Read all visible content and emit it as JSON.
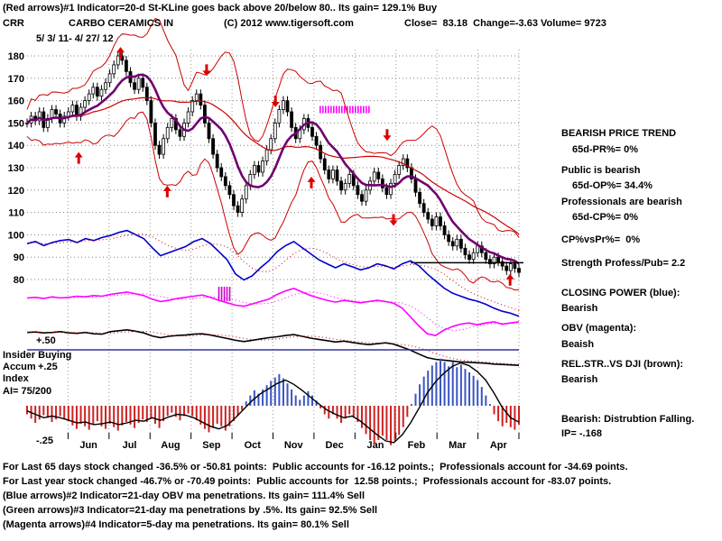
{
  "header": {
    "indicator1": "(Red arrows)#1 Indicator=20-d St-KLine goes back above 20/below 80.. Its gain= 129.1% Buy",
    "symbol": "CRR",
    "company": "CARBO CERAMICS IN",
    "copyright": "(C) 2012 www.tigersoft.com",
    "quote": "Close=  83.18  Change=-3.63 Volume= 9723",
    "date_range": "5/ 3/ 11- 4/ 27/ 12"
  },
  "left_labels": {
    "scale_plus50": "+.50",
    "insider": "Insider Buying",
    "accum": "Accum",
    "scale_plus25": "+.25",
    "index": "Index",
    "ai": "AI= 75/200",
    "scale_minus25": "-.25"
  },
  "side_panel": {
    "lines": [
      "BEARISH PRICE TREND",
      "65d-PR%= 0%",
      "Public is bearish",
      "65d-OP%= 34.4%",
      "Professionals are bearish",
      "65d-CP%= 0%",
      "CP%vsPr%=  0%",
      "Strength Profess/Pub= 2.2",
      "CLOSING POWER (blue):",
      "Bearish",
      "OBV (magenta):",
      "Beaish",
      "REL.STR..VS DJI (brown):",
      "Bearish",
      "Bearish: Distrubtion Falling.",
      "IP= -.168"
    ]
  },
  "footer": {
    "lines": [
      "For Last 65 days stock changed -36.5% or -50.81 points:  Public accounts for -16.12 points.;  Professionals account for -34.69 points.",
      "For Last year stock changed -46.7% or -70.49 points:  Public accounts for  12.58 points.;  Professionals account for -83.07 points.",
      "(Blue arrows)#2 Indicator=21-day OBV ma penetrations. Its gain= 111.4% Sell",
      "(Green arrows)#3 Indicator=21-day ma penetrations by .5%. Its gain= 92.5% Sell",
      "(Magenta arrows)#4 Indicator=5-day ma penetrations. Its gain= 80.1% Sell"
    ]
  },
  "chart_data": {
    "type": "candlestick",
    "title": "CARBO CERAMICS IN (CRR)",
    "date_range": "5/ 3/ 11- 4/ 27/ 12",
    "close": 83.18,
    "change": -3.63,
    "volume": 9723,
    "y_ticks": [
      180,
      170,
      160,
      150,
      140,
      130,
      120,
      110,
      100,
      90,
      80
    ],
    "ylim": [
      75,
      185
    ],
    "months": [
      "Jun",
      "Jul",
      "Aug",
      "Sep",
      "Oct",
      "Nov",
      "Dec",
      "Jan",
      "Feb",
      "Mar",
      "Apr"
    ],
    "close_series": [
      150,
      153,
      151,
      155,
      148,
      152,
      156,
      154,
      150,
      153,
      155,
      158,
      153,
      157,
      160,
      163,
      166,
      162,
      165,
      168,
      172,
      176,
      180,
      178,
      173,
      168,
      165,
      170,
      166,
      160,
      150,
      140,
      136,
      143,
      148,
      152,
      147,
      144,
      150,
      155,
      160,
      163,
      158,
      150,
      143,
      136,
      130,
      126,
      122,
      118,
      113,
      110,
      116,
      122,
      127,
      131,
      128,
      133,
      138,
      143,
      150,
      156,
      160,
      155,
      148,
      143,
      147,
      152,
      148,
      144,
      140,
      134,
      129,
      125,
      129,
      124,
      120,
      123,
      127,
      122,
      118,
      115,
      120,
      124,
      128,
      125,
      121,
      118,
      123,
      127,
      131,
      134,
      130,
      125,
      119,
      114,
      110,
      107,
      104,
      108,
      104,
      100,
      97,
      95,
      98,
      94,
      91,
      89,
      92,
      95,
      92,
      89,
      87,
      90,
      88,
      86,
      84,
      87,
      85,
      83.18
    ],
    "closing_power": [
      0.82,
      0.84,
      0.8,
      0.83,
      0.85,
      0.86,
      0.83,
      0.87,
      0.85,
      0.88,
      0.9,
      0.93,
      0.95,
      0.91,
      0.87,
      0.78,
      0.7,
      0.73,
      0.76,
      0.79,
      0.84,
      0.87,
      0.82,
      0.74,
      0.66,
      0.52,
      0.46,
      0.5,
      0.58,
      0.65,
      0.74,
      0.8,
      0.84,
      0.78,
      0.72,
      0.66,
      0.62,
      0.58,
      0.62,
      0.59,
      0.56,
      0.58,
      0.62,
      0.6,
      0.57,
      0.62,
      0.65,
      0.6,
      0.52,
      0.45,
      0.38,
      0.33,
      0.3,
      0.27,
      0.25,
      0.22,
      0.18,
      0.15,
      0.13,
      0.1
    ],
    "obv": [
      0.72,
      0.73,
      0.71,
      0.74,
      0.72,
      0.73,
      0.75,
      0.74,
      0.76,
      0.75,
      0.78,
      0.8,
      0.82,
      0.79,
      0.76,
      0.7,
      0.66,
      0.68,
      0.71,
      0.73,
      0.75,
      0.77,
      0.73,
      0.68,
      0.64,
      0.6,
      0.58,
      0.62,
      0.66,
      0.7,
      0.78,
      0.84,
      0.88,
      0.82,
      0.76,
      0.72,
      0.68,
      0.65,
      0.68,
      0.66,
      0.64,
      0.66,
      0.68,
      0.66,
      0.63,
      0.55,
      0.4,
      0.25,
      0.12,
      0.09,
      0.18,
      0.24,
      0.28,
      0.3,
      0.27,
      0.3,
      0.32,
      0.28,
      0.3,
      0.32
    ],
    "rel_str": [
      0.86,
      0.87,
      0.85,
      0.86,
      0.88,
      0.85,
      0.84,
      0.86,
      0.83,
      0.82,
      0.88,
      0.9,
      0.92,
      0.89,
      0.85,
      0.78,
      0.74,
      0.77,
      0.79,
      0.8,
      0.82,
      0.83,
      0.8,
      0.76,
      0.72,
      0.68,
      0.65,
      0.68,
      0.71,
      0.74,
      0.76,
      0.79,
      0.81,
      0.77,
      0.73,
      0.7,
      0.67,
      0.64,
      0.66,
      0.63,
      0.6,
      0.58,
      0.6,
      0.62,
      0.59,
      0.52,
      0.45,
      0.36,
      0.28,
      0.24,
      0.22,
      0.2,
      0.18,
      0.17,
      0.16,
      0.15,
      0.13,
      0.12,
      0.11,
      0.1
    ],
    "accum": [
      -0.1,
      -0.15,
      -0.2,
      -0.16,
      -0.11,
      -0.14,
      -0.19,
      -0.16,
      -0.12,
      -0.15,
      -0.18,
      -0.23,
      -0.27,
      -0.21,
      -0.24,
      -0.28,
      -0.22,
      -0.18,
      -0.24,
      -0.27,
      -0.21,
      -0.25,
      -0.29,
      -0.23,
      -0.19,
      -0.22,
      -0.26,
      -0.2,
      -0.16,
      -0.19,
      -0.15,
      -0.21,
      -0.26,
      -0.18,
      -0.12,
      -0.08,
      -0.13,
      -0.17,
      -0.12,
      -0.09,
      -0.12,
      -0.17,
      -0.22,
      -0.27,
      -0.31,
      -0.26,
      -0.21,
      -0.24,
      -0.29,
      -0.24,
      -0.18,
      -0.12,
      -0.05,
      0.05,
      0.12,
      0.18,
      0.14,
      0.19,
      0.24,
      0.29,
      0.33,
      0.37,
      0.32,
      0.26,
      0.19,
      0.12,
      0.07,
      0.12,
      0.17,
      0.12,
      0.06,
      -0.03,
      -0.1,
      -0.15,
      -0.1,
      -0.15,
      -0.2,
      -0.15,
      -0.1,
      -0.14,
      -0.19,
      -0.26,
      -0.33,
      -0.4,
      -0.45,
      -0.4,
      -0.35,
      -0.4,
      -0.46,
      -0.41,
      -0.34,
      -0.25,
      -0.13,
      0.02,
      0.14,
      0.25,
      0.34,
      0.41,
      0.47,
      0.51,
      0.55,
      0.51,
      0.46,
      0.51,
      0.45,
      0.48,
      0.43,
      0.39,
      0.35,
      0.3,
      0.22,
      0.12,
      0.02,
      -0.1,
      -0.18,
      -0.24,
      -0.2,
      -0.25,
      -0.28,
      -0.22
    ],
    "ai_line": [
      -0.06,
      -0.1,
      -0.14,
      -0.12,
      -0.14,
      -0.17,
      -0.2,
      -0.19,
      -0.22,
      -0.21,
      -0.19,
      -0.22,
      -0.2,
      -0.17,
      -0.18,
      -0.14,
      -0.17,
      -0.13,
      -0.1,
      -0.11,
      -0.14,
      -0.19,
      -0.24,
      -0.27,
      -0.23,
      -0.14,
      -0.04,
      0.06,
      0.14,
      0.2,
      0.26,
      0.3,
      0.25,
      0.18,
      0.1,
      0.02,
      -0.05,
      -0.1,
      -0.14,
      -0.12,
      -0.18,
      -0.26,
      -0.34,
      -0.41,
      -0.43,
      -0.34,
      -0.2,
      -0.03,
      0.15,
      0.28,
      0.38,
      0.46,
      0.5,
      0.47,
      0.4,
      0.3,
      0.15,
      -0.02,
      -0.14,
      -0.19
    ],
    "arrows": [
      {
        "xf": 0.105,
        "dir": "up",
        "price": 137
      },
      {
        "xf": 0.19,
        "dir": "up",
        "price": 184
      },
      {
        "xf": 0.285,
        "dir": "up",
        "price": 122
      },
      {
        "xf": 0.365,
        "dir": "down",
        "price": 171
      },
      {
        "xf": 0.505,
        "dir": "down",
        "price": 157
      },
      {
        "xf": 0.578,
        "dir": "up",
        "price": 126
      },
      {
        "xf": 0.732,
        "dir": "down",
        "price": 142
      },
      {
        "xf": 0.745,
        "dir": "down",
        "price": 104
      },
      {
        "xf": 0.982,
        "dir": "up",
        "price": 82.5
      }
    ],
    "hatch_band": {
      "xf0": 0.596,
      "xf1": 0.7,
      "price": 156
    },
    "hatch_small": {
      "xf0": 0.39,
      "xf1": 0.415,
      "y0": 318,
      "y1": 334
    },
    "support_line": {
      "xf0": 0.78,
      "xf1": 1.0,
      "price": 87.5
    },
    "colors": {
      "arrow_red": "#dd0000",
      "band_red": "#cc0000",
      "ma_purple": "#70006e",
      "cp_blue": "#0000cc",
      "obv_magenta": "#ff00ff",
      "relstr_black": "#000000",
      "bar_neg": "#cc2222",
      "bar_pos": "#3a55c0",
      "insider_line": "#333399",
      "grid": "#808080"
    }
  }
}
